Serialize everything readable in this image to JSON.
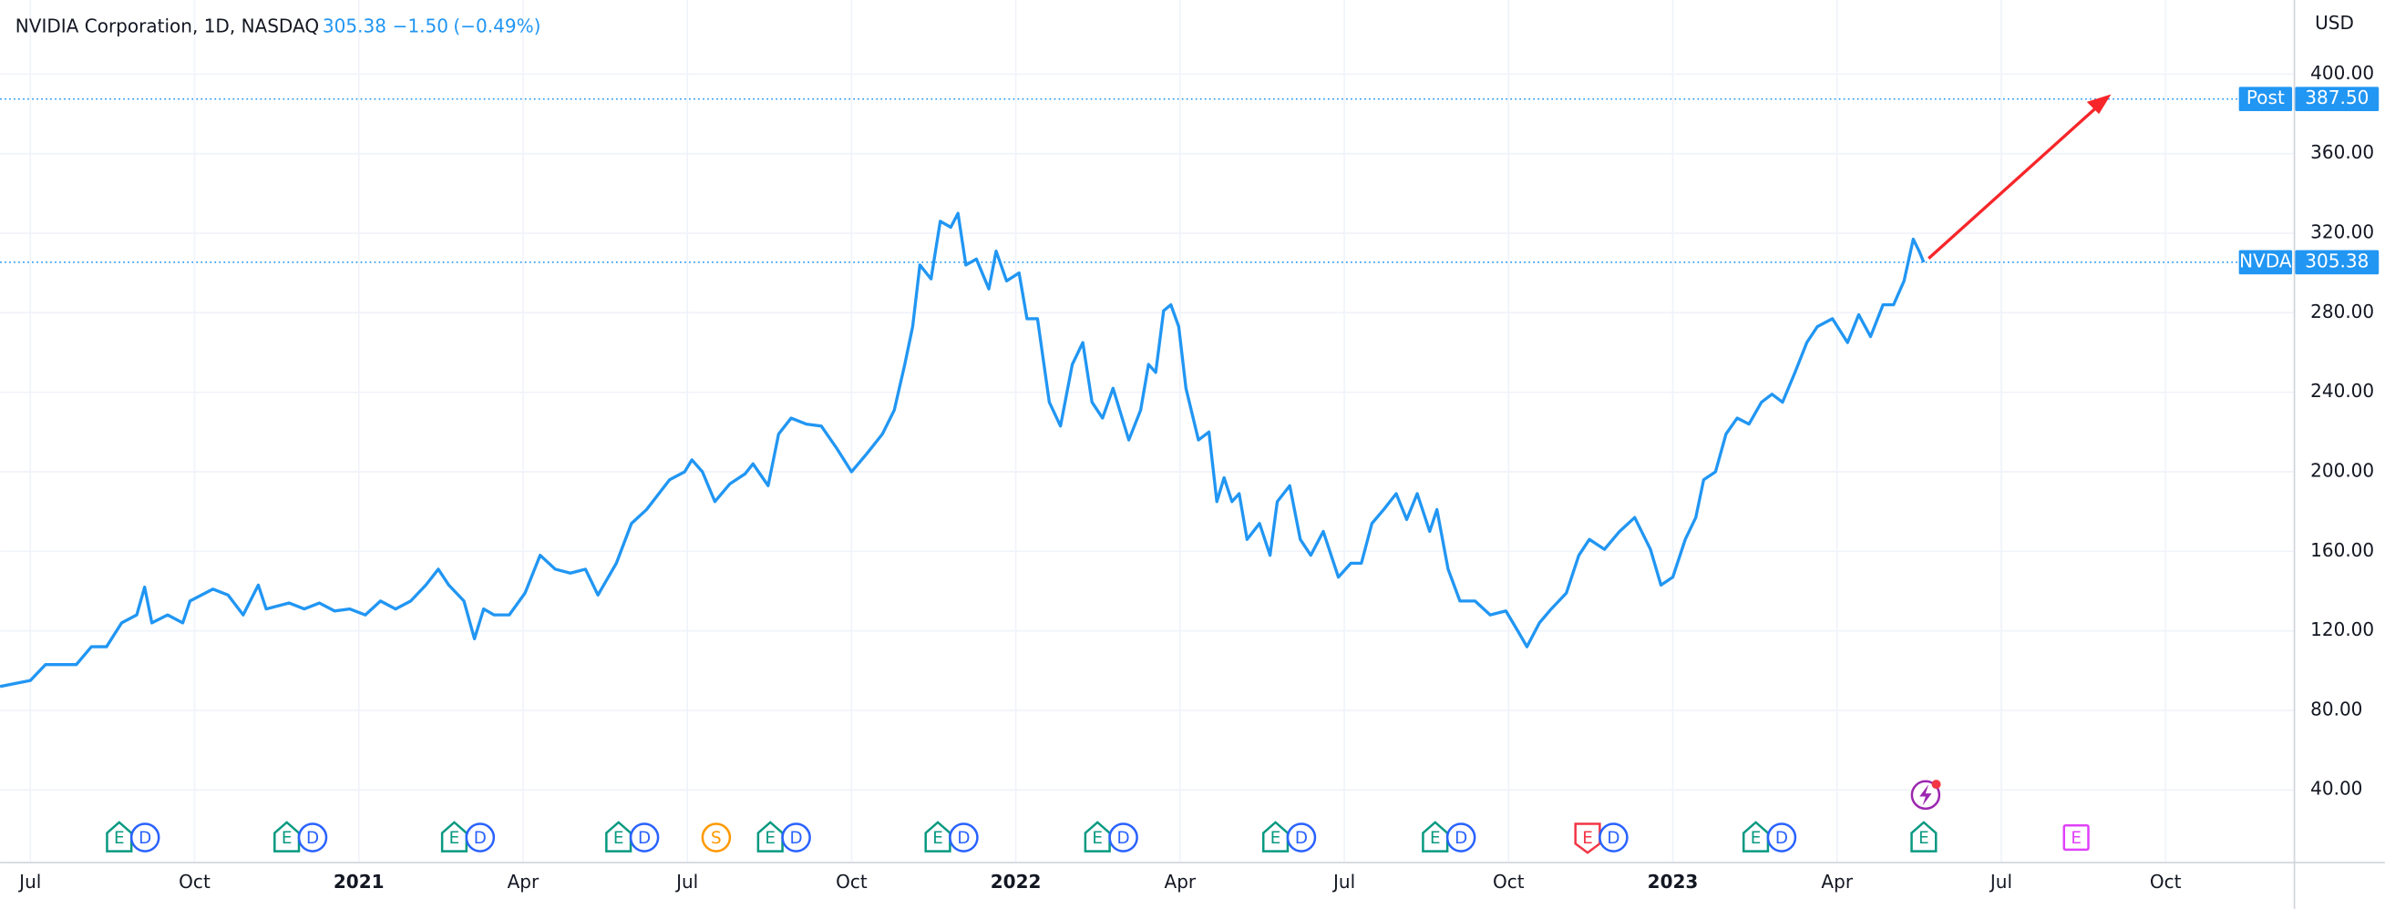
{
  "chart_data": {
    "type": "line",
    "title": "NVIDIA Corporation, 1D, NASDAQ",
    "price": 305.38,
    "change": {
      "value": -1.5,
      "label": "−1.50"
    },
    "change_percent": {
      "value": -0.49,
      "label": "(−0.49%)"
    },
    "currency": "USD",
    "grid": true,
    "series": [
      {
        "name": "NVDA",
        "color": "#2196f3",
        "x": [
          2020.454,
          2020.5,
          2020.523,
          2020.57,
          2020.593,
          2020.616,
          2020.639,
          2020.662,
          2020.674,
          2020.685,
          2020.709,
          2020.732,
          2020.743,
          2020.778,
          2020.801,
          2020.824,
          2020.847,
          2020.859,
          2020.894,
          2020.917,
          2020.94,
          2020.963,
          2020.986,
          2021.01,
          2021.033,
          2021.056,
          2021.079,
          2021.102,
          2021.121,
          2021.137,
          2021.16,
          2021.176,
          2021.19,
          2021.206,
          2021.229,
          2021.253,
          2021.276,
          2021.299,
          2021.322,
          2021.345,
          2021.364,
          2021.392,
          2021.415,
          2021.438,
          2021.473,
          2021.496,
          2021.507,
          2021.523,
          2021.542,
          2021.565,
          2021.588,
          2021.6,
          2021.623,
          2021.639,
          2021.658,
          2021.681,
          2021.704,
          2021.727,
          2021.75,
          2021.773,
          2021.797,
          2021.815,
          2021.831,
          2021.843,
          2021.854,
          2021.871,
          2021.885,
          2021.901,
          2021.912,
          2021.924,
          2021.94,
          2021.959,
          2021.97,
          2021.986,
          2022.005,
          2022.017,
          2022.033,
          2022.051,
          2022.068,
          2022.086,
          2022.102,
          2022.116,
          2022.132,
          2022.148,
          2022.172,
          2022.19,
          2022.202,
          2022.213,
          2022.225,
          2022.236,
          2022.248,
          2022.259,
          2022.278,
          2022.294,
          2022.306,
          2022.317,
          2022.329,
          2022.34,
          2022.352,
          2022.371,
          2022.387,
          2022.398,
          2022.417,
          2022.433,
          2022.449,
          2022.468,
          2022.491,
          2022.51,
          2022.526,
          2022.542,
          2022.56,
          2022.579,
          2022.595,
          2022.611,
          2022.63,
          2022.641,
          2022.658,
          2022.676,
          2022.699,
          2022.722,
          2022.746,
          2022.764,
          2022.778,
          2022.797,
          2022.815,
          2022.838,
          2022.857,
          2022.873,
          2022.896,
          2022.919,
          2022.942,
          2022.966,
          2022.982,
          2023.0,
          2023.019,
          2023.035,
          2023.047,
          2023.065,
          2023.081,
          2023.098,
          2023.116,
          2023.135,
          2023.151,
          2023.167,
          2023.186,
          2023.204,
          2023.22,
          2023.243,
          2023.266,
          2023.283,
          2023.301,
          2023.32,
          2023.336,
          2023.352,
          2023.366,
          2023.375,
          2023.382
        ],
        "values": [
          92,
          95,
          103,
          103,
          112,
          112,
          124,
          128,
          142,
          124,
          128,
          124,
          135,
          141,
          138,
          128,
          143,
          131,
          134,
          131,
          134,
          130,
          131,
          128,
          135,
          131,
          135,
          143,
          151,
          143,
          135,
          116,
          131,
          128,
          128,
          139,
          158,
          151,
          149,
          151,
          138,
          154,
          174,
          181,
          196,
          200,
          206,
          200,
          185,
          194,
          199,
          204,
          193,
          219,
          227,
          224,
          223,
          212,
          200,
          209,
          219,
          231,
          254,
          273,
          304,
          297,
          326,
          323,
          330,
          304,
          307,
          292,
          311,
          296,
          300,
          277,
          277,
          235,
          223,
          254,
          265,
          235,
          227,
          242,
          216,
          231,
          254,
          250,
          281,
          284,
          273,
          242,
          216,
          220,
          185,
          197,
          185,
          189,
          166,
          174,
          158,
          185,
          193,
          166,
          158,
          170,
          147,
          154,
          154,
          174,
          181,
          189,
          176,
          189,
          170,
          181,
          151,
          135,
          135,
          128,
          130,
          120,
          112,
          124,
          131,
          139,
          158,
          166,
          161,
          170,
          177,
          161,
          143,
          147,
          166,
          177,
          196,
          200,
          219,
          227,
          224,
          235,
          239,
          235,
          250,
          265,
          273,
          277,
          265,
          279,
          268,
          284,
          284,
          296,
          317,
          311,
          305.38
        ]
      }
    ],
    "post": {
      "name": "Post",
      "value": 387.5,
      "label": "387.50"
    },
    "xlim": [
      2020.454,
      2023.945
    ],
    "xticks": [
      {
        "value": 2020.5,
        "label": "Jul"
      },
      {
        "value": 2020.75,
        "label": "Oct"
      },
      2021,
      {
        "value": 2021.25,
        "label": "Apr"
      },
      {
        "value": 2021.5,
        "label": "Jul"
      },
      {
        "value": 2021.75,
        "label": "Oct"
      },
      2022,
      {
        "value": 2022.25,
        "label": "Apr"
      },
      {
        "value": 2022.5,
        "label": "Jul"
      },
      {
        "value": 2022.75,
        "label": "Oct"
      },
      2023,
      {
        "value": 2023.25,
        "label": "Apr"
      },
      {
        "value": 2023.5,
        "label": "Jul"
      },
      {
        "value": 2023.75,
        "label": "Oct"
      }
    ],
    "ylim": [
      3.8,
      437.3
    ],
    "yticks": [
      {
        "value": 40,
        "label": "40.00"
      },
      {
        "value": 80,
        "label": "80.00"
      },
      {
        "value": 120,
        "label": "120.00"
      },
      {
        "value": 160,
        "label": "160.00"
      },
      {
        "value": 200,
        "label": "200.00"
      },
      {
        "value": 240,
        "label": "240.00"
      },
      {
        "value": 280,
        "label": "280.00"
      },
      {
        "value": 320,
        "label": "320.00"
      },
      {
        "value": 360,
        "label": "360.00"
      },
      {
        "value": 400,
        "label": "400.00"
      }
    ],
    "events": [
      {
        "x": 2020.655,
        "items": [
          {
            "label": "E",
            "color": "#089981",
            "shape": "up"
          },
          {
            "label": "D",
            "color": "#2962ff",
            "shape": "circle"
          }
        ]
      },
      {
        "x": 2020.91,
        "items": [
          {
            "label": "E",
            "color": "#089981",
            "shape": "up"
          },
          {
            "label": "D",
            "color": "#2962ff",
            "shape": "circle"
          }
        ]
      },
      {
        "x": 2021.165,
        "items": [
          {
            "label": "E",
            "color": "#089981",
            "shape": "up"
          },
          {
            "label": "D",
            "color": "#2962ff",
            "shape": "circle"
          }
        ]
      },
      {
        "x": 2021.415,
        "items": [
          {
            "label": "E",
            "color": "#089981",
            "shape": "up"
          },
          {
            "label": "D",
            "color": "#2962ff",
            "shape": "circle"
          }
        ]
      },
      {
        "x": 2021.544,
        "items": [
          {
            "label": "S",
            "color": "#ff9800",
            "shape": "circle"
          }
        ]
      },
      {
        "x": 2021.646,
        "items": [
          {
            "label": "E",
            "color": "#089981",
            "shape": "up"
          },
          {
            "label": "D",
            "color": "#2962ff",
            "shape": "circle"
          }
        ]
      },
      {
        "x": 2021.901,
        "items": [
          {
            "label": "E",
            "color": "#089981",
            "shape": "up"
          },
          {
            "label": "D",
            "color": "#2962ff",
            "shape": "circle"
          }
        ]
      },
      {
        "x": 2022.144,
        "items": [
          {
            "label": "E",
            "color": "#089981",
            "shape": "up"
          },
          {
            "label": "D",
            "color": "#2962ff",
            "shape": "circle"
          }
        ]
      },
      {
        "x": 2022.415,
        "items": [
          {
            "label": "E",
            "color": "#089981",
            "shape": "up"
          },
          {
            "label": "D",
            "color": "#2962ff",
            "shape": "circle"
          }
        ]
      },
      {
        "x": 2022.658,
        "items": [
          {
            "label": "E",
            "color": "#089981",
            "shape": "up"
          },
          {
            "label": "D",
            "color": "#2962ff",
            "shape": "circle"
          }
        ]
      },
      {
        "x": 2022.89,
        "items": [
          {
            "label": "E",
            "color": "#f23645",
            "shape": "down"
          },
          {
            "label": "D",
            "color": "#2962ff",
            "shape": "circle"
          }
        ]
      },
      {
        "x": 2023.146,
        "items": [
          {
            "label": "E",
            "color": "#089981",
            "shape": "up"
          },
          {
            "label": "D",
            "color": "#2962ff",
            "shape": "circle"
          }
        ]
      },
      {
        "x": 2023.382,
        "items": [
          {
            "label": "E",
            "color": "#089981",
            "shape": "up"
          }
        ]
      },
      {
        "x": 2023.614,
        "items": [
          {
            "label": "E",
            "color": "#e040fb",
            "shape": "square"
          }
        ]
      }
    ]
  }
}
